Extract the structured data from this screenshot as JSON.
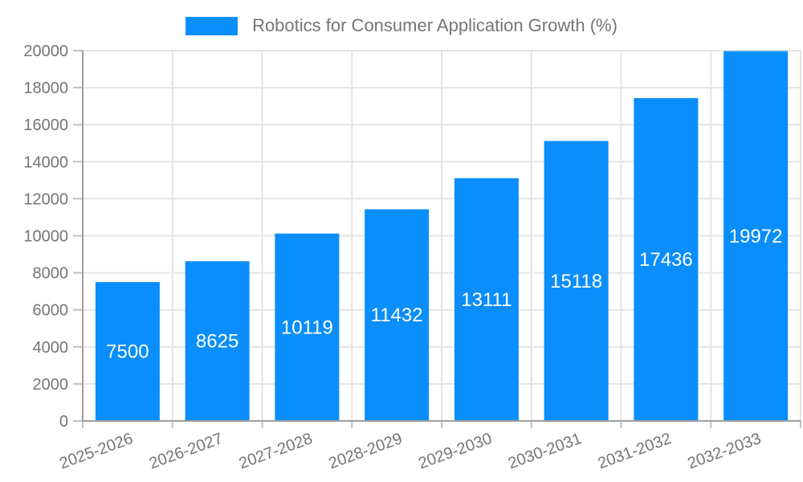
{
  "legend": {
    "label": "Robotics for Consumer Application Growth (%)"
  },
  "chart_data": {
    "type": "bar",
    "title": "Robotics for Consumer Application Growth (%)",
    "categories": [
      "2025-2026",
      "2026-2027",
      "2027-2028",
      "2028-2029",
      "2029-2030",
      "2030-2031",
      "2031-2032",
      "2032-2033"
    ],
    "values": [
      7500,
      8625,
      10119,
      11432,
      13111,
      15118,
      17436,
      19972
    ],
    "xlabel": "",
    "ylabel": "",
    "ylim": [
      0,
      20000
    ],
    "ytick_step": 2000,
    "grid": true,
    "legend_position": "top",
    "colors": {
      "bar": "#0A8EFB",
      "value_label": "#FFFFFF",
      "axis_text": "#757575",
      "axis_line": "#9E9E9E",
      "gridline": "#E4E4E4",
      "tick": "#C2C2C2"
    }
  }
}
